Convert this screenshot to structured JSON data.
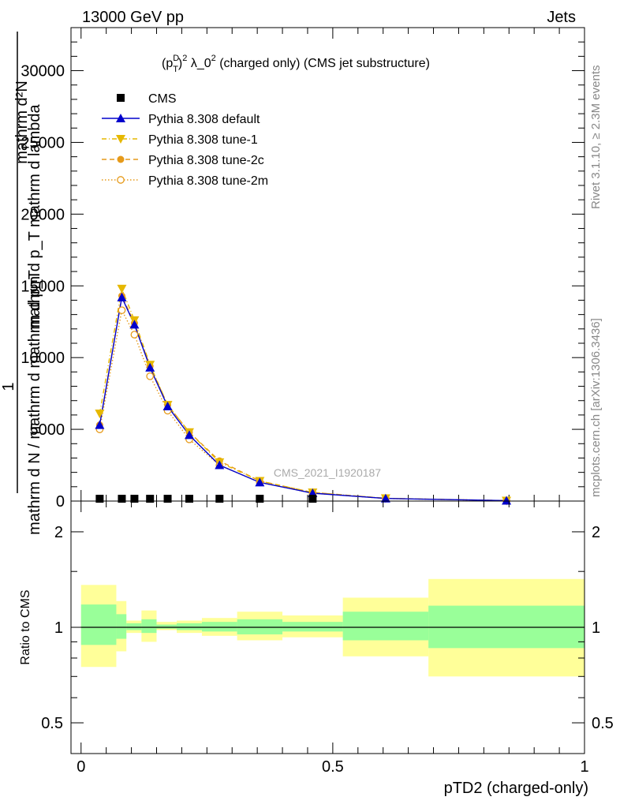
{
  "header": {
    "left": "13000 GeV pp",
    "right": "Jets"
  },
  "side_text": {
    "rivet": "Rivet 3.1.10, ≥ 2.3M events",
    "mcplots": "mcplots.cern.ch [arXiv:1306.3436]"
  },
  "plot_title": {
    "p": "(p",
    "sup_d": "D",
    "sub_t": "T",
    "rest1": ")",
    "sup_2a": "2",
    "lambda": " λ_0",
    "sup_2b": "2",
    "rest2": " (charged only) (CMS jet substructure)"
  },
  "y_axis_label": {
    "numerator": "mathrm d²N",
    "denominator": "mathrm d p_T mathrm d lambda",
    "one": "1",
    "prefactor": "mathrm d N / mathrm d mathrm d p_T"
  },
  "watermark": "CMS_2021_I1920187",
  "x_axis_label": "pTD2 (charged-only)",
  "ratio_y_label": "Ratio to CMS",
  "colors": {
    "cms": "#000000",
    "default": "#0000cc",
    "tune1": "#e6b800",
    "tune2c": "#e69a1a",
    "tune2m": "#e69a1a",
    "band_inner": "#99ff99",
    "band_outer": "#ffff99"
  },
  "chart_data": {
    "type": "line",
    "main_panel": {
      "xlim": [
        -0.02,
        1.0
      ],
      "ylim": [
        0,
        33000
      ],
      "y_ticks": [
        0,
        5000,
        10000,
        15000,
        20000,
        25000,
        30000
      ],
      "y_tick_labels": [
        "0",
        "5000",
        "10000",
        "15000",
        "20000",
        "25000",
        "30000"
      ],
      "legend_position": "top-left",
      "legend": [
        "CMS",
        "Pythia 8.308 default",
        "Pythia 8.308 tune-1",
        "Pythia 8.308 tune-2c",
        "Pythia 8.308 tune-2m"
      ],
      "series": [
        {
          "name": "CMS",
          "marker": "square",
          "x": [
            0.037,
            0.081,
            0.106,
            0.137,
            0.172,
            0.215,
            0.275,
            0.355,
            0.46
          ],
          "y": [
            50,
            50,
            50,
            50,
            50,
            50,
            50,
            50,
            50
          ]
        },
        {
          "name": "Pythia 8.308 default",
          "marker": "triangle-up",
          "line": "solid",
          "x": [
            0.037,
            0.081,
            0.106,
            0.137,
            0.172,
            0.215,
            0.275,
            0.355,
            0.46,
            0.605,
            0.845
          ],
          "y": [
            5300,
            14200,
            12300,
            9300,
            6600,
            4600,
            2500,
            1300,
            550,
            180,
            30
          ]
        },
        {
          "name": "Pythia 8.308 tune-1",
          "marker": "triangle-down",
          "line": "dashdot",
          "x": [
            0.037,
            0.081,
            0.106,
            0.137,
            0.172,
            0.215,
            0.275,
            0.355,
            0.46,
            0.605,
            0.845
          ],
          "y": [
            6100,
            14800,
            12600,
            9500,
            6700,
            4800,
            2700,
            1400,
            600,
            190,
            30
          ]
        },
        {
          "name": "Pythia 8.308 tune-2c",
          "marker": "circle-filled",
          "line": "dashed",
          "x": [
            0.037,
            0.081,
            0.106,
            0.137,
            0.172,
            0.215,
            0.275,
            0.355,
            0.46,
            0.605,
            0.845
          ],
          "y": [
            5300,
            14300,
            12400,
            9400,
            6700,
            4800,
            2800,
            1400,
            600,
            190,
            30
          ]
        },
        {
          "name": "Pythia 8.308 tune-2m",
          "marker": "circle-open",
          "line": "dotted",
          "x": [
            0.037,
            0.081,
            0.106,
            0.137,
            0.172,
            0.215,
            0.275,
            0.355,
            0.46,
            0.605,
            0.845
          ],
          "y": [
            5000,
            13300,
            11600,
            8700,
            6300,
            4300,
            2500,
            1300,
            550,
            180,
            30
          ]
        }
      ]
    },
    "ratio_panel": {
      "ylabel": "Ratio to CMS",
      "log_scale": true,
      "ylim": [
        0.4,
        2.5
      ],
      "y_ticks": [
        0.5,
        1,
        2
      ],
      "y_tick_labels": [
        "0.5",
        "1",
        "2"
      ],
      "x_ticks": [
        0,
        0.5,
        1
      ],
      "x_tick_labels": [
        "0",
        "0.5",
        "1"
      ],
      "bins": [
        {
          "lo": 0.0,
          "hi": 0.07,
          "inner": [
            0.88,
            1.18
          ],
          "outer": [
            0.75,
            1.36
          ]
        },
        {
          "lo": 0.07,
          "hi": 0.09,
          "inner": [
            0.92,
            1.1
          ],
          "outer": [
            0.84,
            1.21
          ]
        },
        {
          "lo": 0.09,
          "hi": 0.12,
          "inner": [
            0.98,
            1.03
          ],
          "outer": [
            0.96,
            1.05
          ]
        },
        {
          "lo": 0.12,
          "hi": 0.15,
          "inner": [
            0.96,
            1.06
          ],
          "outer": [
            0.9,
            1.13
          ]
        },
        {
          "lo": 0.15,
          "hi": 0.19,
          "inner": [
            0.99,
            1.02
          ],
          "outer": [
            0.98,
            1.04
          ]
        },
        {
          "lo": 0.19,
          "hi": 0.24,
          "inner": [
            0.98,
            1.03
          ],
          "outer": [
            0.96,
            1.05
          ]
        },
        {
          "lo": 0.24,
          "hi": 0.31,
          "inner": [
            0.97,
            1.04
          ],
          "outer": [
            0.94,
            1.07
          ]
        },
        {
          "lo": 0.31,
          "hi": 0.4,
          "inner": [
            0.95,
            1.06
          ],
          "outer": [
            0.91,
            1.12
          ]
        },
        {
          "lo": 0.4,
          "hi": 0.52,
          "inner": [
            0.97,
            1.04
          ],
          "outer": [
            0.93,
            1.09
          ]
        },
        {
          "lo": 0.52,
          "hi": 0.69,
          "inner": [
            0.91,
            1.12
          ],
          "outer": [
            0.81,
            1.24
          ]
        },
        {
          "lo": 0.69,
          "hi": 1.0,
          "inner": [
            0.86,
            1.17
          ],
          "outer": [
            0.7,
            1.42
          ]
        }
      ]
    }
  }
}
